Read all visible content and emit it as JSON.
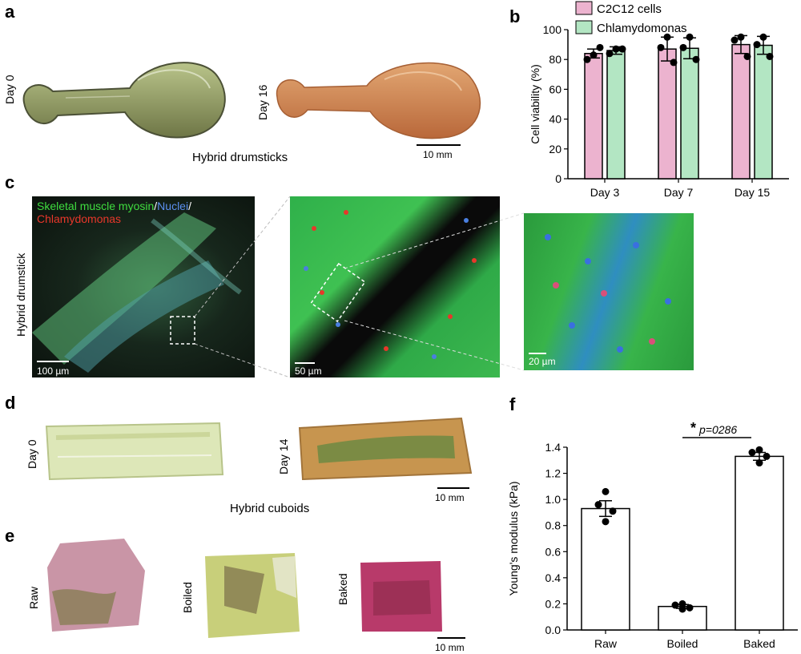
{
  "panels": {
    "a": {
      "letter": "a",
      "label_day0": "Day 0",
      "label_day16": "Day 16",
      "caption": "Hybrid drumsticks",
      "scale": "10 mm"
    },
    "b": {
      "letter": "b"
    },
    "c": {
      "letter": "c",
      "side_label": "Hybrid drumstick",
      "legend_myosin": "Skeletal muscle myosin",
      "legend_slash1": "/",
      "legend_nuclei": "Nuclei",
      "legend_slash2": "/",
      "legend_chlamy": "Chlamydomonas",
      "scale1": "100 µm",
      "scale2": "50 µm",
      "scale3": "20 µm",
      "colors": {
        "myosin": "#3fdc3f",
        "nuclei": "#3a78d8",
        "chlamy": "#e8372a"
      }
    },
    "d": {
      "letter": "d",
      "label_day0": "Day 0",
      "label_day14": "Day 14",
      "caption": "Hybrid cuboids",
      "scale": "10 mm"
    },
    "e": {
      "letter": "e",
      "label_raw": "Raw",
      "label_boiled": "Boiled",
      "label_baked": "Baked",
      "scale": "10 mm"
    },
    "f": {
      "letter": "f"
    }
  },
  "chart_data": [
    {
      "type": "bar",
      "panel": "b",
      "categories": [
        "Day 3",
        "Day 7",
        "Day 15"
      ],
      "ylabel": "Cell viability (%)",
      "ylim": [
        0,
        100
      ],
      "yticks": [
        "0",
        "20",
        "40",
        "60",
        "80",
        "100"
      ],
      "legend": "top",
      "series": [
        {
          "name": "C2C12 cells",
          "color": "#ecb3cf",
          "values": [
            84,
            87,
            90
          ],
          "err": [
            3,
            8,
            6
          ],
          "points": [
            [
              83,
              80,
              88
            ],
            [
              95,
              88,
              78
            ],
            [
              95,
              93,
              82
            ]
          ]
        },
        {
          "name": "Chlamydomonas",
          "color": "#b3e6c3",
          "values": [
            86,
            87.5,
            89.5
          ],
          "err": [
            2.5,
            7,
            6
          ],
          "points": [
            [
              87,
              84,
              87
            ],
            [
              95,
              88,
              80
            ],
            [
              95,
              90,
              82
            ]
          ]
        }
      ]
    },
    {
      "type": "bar",
      "panel": "f",
      "categories": [
        "Raw",
        "Boiled",
        "Baked"
      ],
      "ylabel": "Young's modulus (kPa)",
      "ylim": [
        0,
        1.4
      ],
      "yticks": [
        "0.0",
        "0.2",
        "0.4",
        "0.6",
        "0.8",
        "1.0",
        "1.2",
        "1.4"
      ],
      "series": [
        {
          "name": "",
          "color": "#ffffff",
          "values": [
            0.93,
            0.18,
            1.33
          ],
          "err": [
            0.06,
            0.015,
            0.03
          ],
          "points": [
            [
              1.06,
              0.96,
              0.91,
              0.83
            ],
            [
              0.2,
              0.19,
              0.17,
              0.16
            ],
            [
              1.38,
              1.36,
              1.33,
              1.28
            ]
          ]
        }
      ],
      "annotation": {
        "star": "*",
        "text": "p=0286"
      }
    }
  ]
}
